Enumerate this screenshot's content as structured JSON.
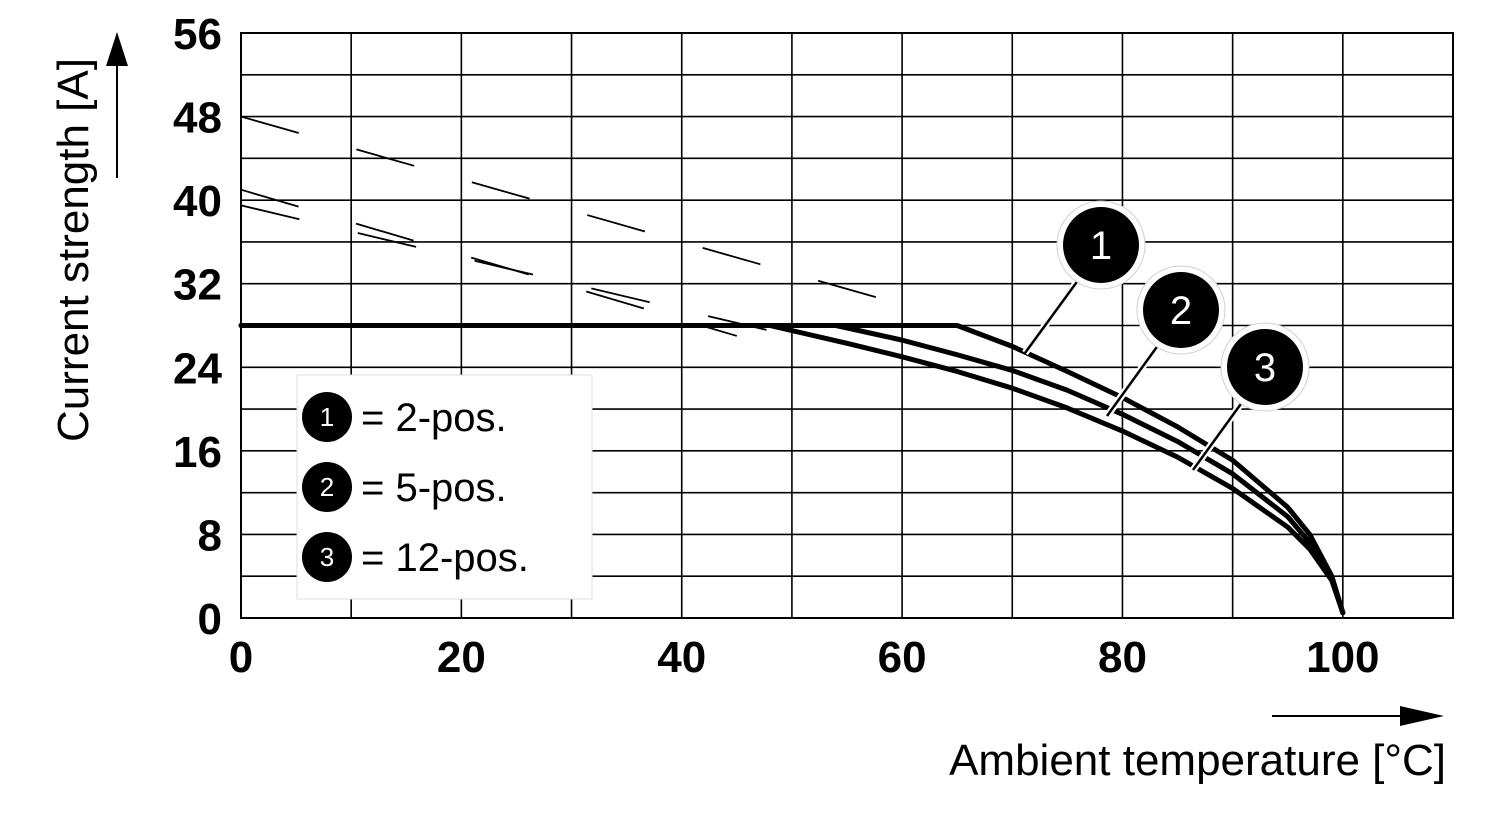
{
  "chart_data": {
    "type": "line",
    "xlabel": "Ambient temperature [°C]",
    "ylabel": "Current strength [A]",
    "xlim": [
      0,
      110
    ],
    "ylim": [
      0,
      56
    ],
    "x_ticks": [
      "0",
      "20",
      "40",
      "60",
      "80",
      "100"
    ],
    "y_ticks": [
      "0",
      "8",
      "16",
      "24",
      "32",
      "40",
      "48",
      "56"
    ],
    "grid": true,
    "legend_position": "bottom-left",
    "legend": [
      {
        "marker": "1",
        "text": "= 2-pos."
      },
      {
        "marker": "2",
        "text": "= 5-pos."
      },
      {
        "marker": "3",
        "text": "= 12-pos."
      }
    ],
    "series": [
      {
        "marker": "1",
        "x": [
          0,
          65,
          70,
          75,
          80,
          85,
          90,
          95,
          97,
          99,
          100
        ],
        "y": [
          28,
          28,
          26,
          23.6,
          21.1,
          18.3,
          15.1,
          10.6,
          8,
          4,
          0.5
        ]
      },
      {
        "marker": "2",
        "x": [
          0,
          54,
          60,
          65,
          70,
          75,
          80,
          85,
          90,
          95,
          97,
          99,
          100
        ],
        "y": [
          28,
          28,
          26.6,
          25.2,
          23.7,
          21.8,
          19.5,
          16.9,
          13.8,
          9.7,
          7.2,
          3.9,
          0.5
        ]
      },
      {
        "marker": "3",
        "x": [
          0,
          48,
          55,
          60,
          65,
          70,
          75,
          80,
          85,
          90,
          95,
          97,
          99,
          100
        ],
        "y": [
          28,
          28,
          26.3,
          25,
          23.6,
          22,
          20.1,
          17.9,
          15.4,
          12.4,
          8.7,
          6.6,
          3.6,
          0.5
        ]
      }
    ],
    "dashed_lines": [
      {
        "x": [
          0,
          60
        ],
        "y": [
          48,
          30
        ]
      },
      {
        "x": [
          0,
          45
        ],
        "y": [
          41,
          27
        ]
      },
      {
        "x": [
          0,
          50
        ],
        "y": [
          39.5,
          27
        ]
      }
    ]
  }
}
